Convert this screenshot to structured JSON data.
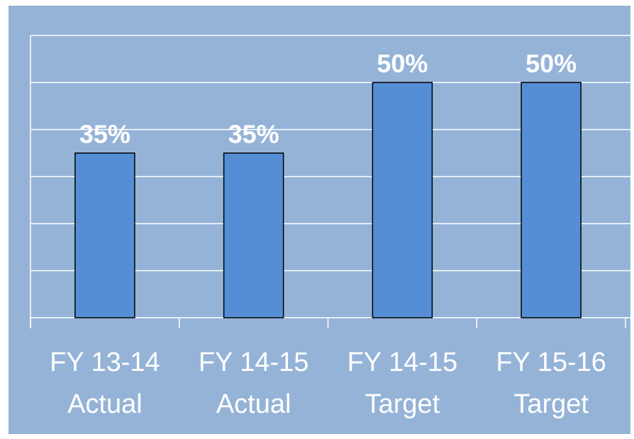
{
  "chart_data": {
    "type": "bar",
    "categories": [
      "FY 13-14\nActual",
      "FY 14-15\nActual",
      "FY 14-15\nTarget",
      "FY 15-16\nTarget"
    ],
    "values": [
      35,
      35,
      50,
      50
    ],
    "value_labels": [
      "35%",
      "35%",
      "50%",
      "50%"
    ],
    "color": "#558ed5",
    "ylim": [
      0,
      60
    ],
    "yticks": [
      0,
      10,
      20,
      30,
      40,
      50,
      60
    ],
    "grid": true
  }
}
